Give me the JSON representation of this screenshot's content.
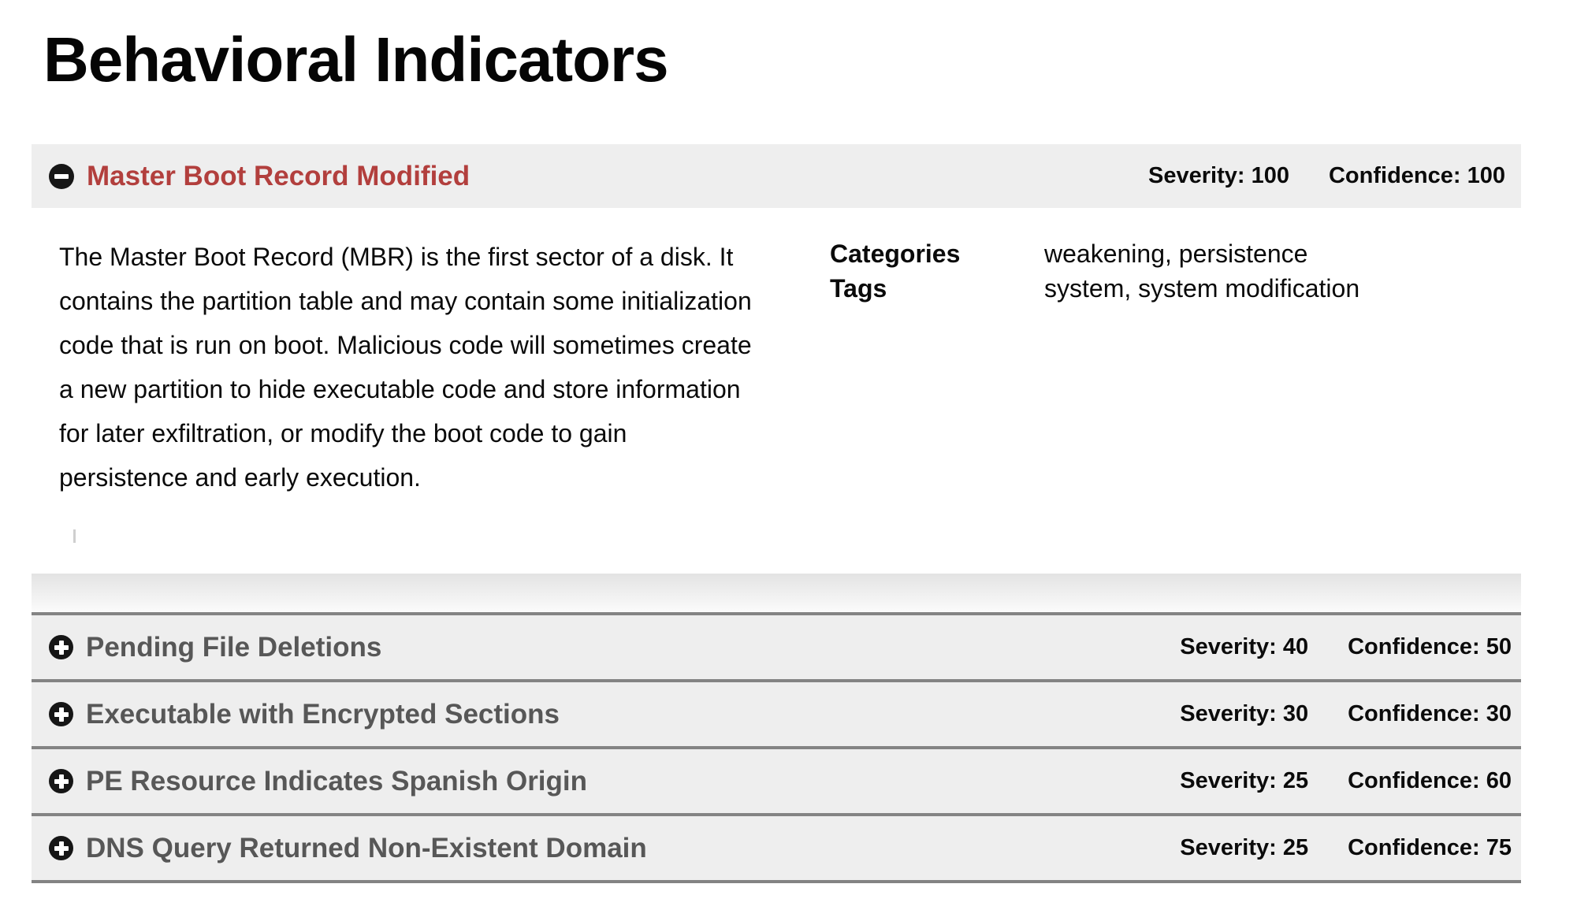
{
  "page": {
    "title": "Behavioral Indicators"
  },
  "labels": {
    "severity": "Severity:",
    "confidence": "Confidence:",
    "categories": "Categories",
    "tags": "Tags"
  },
  "icons": {
    "expanded": "minus-circle-icon",
    "collapsed": "plus-circle-icon"
  },
  "colors": {
    "expanded_title_red": "#b23f3d",
    "collapsed_title_gray": "#575757",
    "row_background": "#eeeeee",
    "separator": "#838383",
    "text_black": "#0a0a0a"
  },
  "indicators": [
    {
      "title": "Master Boot Record Modified",
      "severity": "100",
      "confidence": "100",
      "expanded": true,
      "description": "The Master Boot Record (MBR) is the first sector of a disk. It\ncontains the partition table and may contain some initialization\ncode that is run on boot. Malicious code will sometimes create\na new partition to hide executable code and store information\nfor later exfiltration, or modify the boot code to gain\npersistence and early execution.",
      "categories": "weakening, persistence",
      "tags": "system, system modification"
    },
    {
      "title": "Pending File Deletions",
      "severity": "40",
      "confidence": "50",
      "expanded": false
    },
    {
      "title": "Executable with Encrypted Sections",
      "severity": "30",
      "confidence": "30",
      "expanded": false
    },
    {
      "title": "PE Resource Indicates Spanish Origin",
      "severity": "25",
      "confidence": "60",
      "expanded": false
    },
    {
      "title": "DNS Query Returned Non-Existent Domain",
      "severity": "25",
      "confidence": "75",
      "expanded": false
    }
  ]
}
